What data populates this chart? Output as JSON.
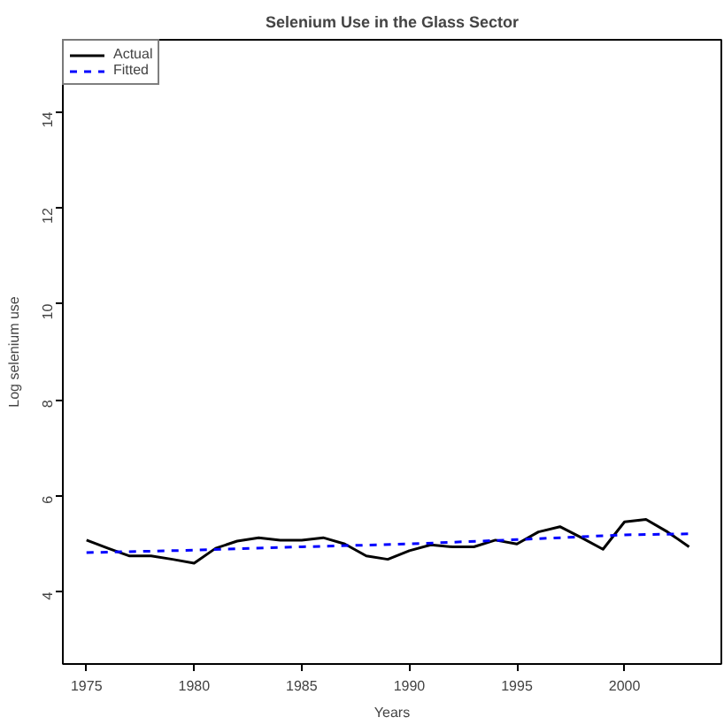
{
  "chart_data": {
    "type": "line",
    "title": "Selenium Use in the Glass Sector",
    "xlabel": "Years",
    "ylabel": "Log selenium use",
    "xlim": [
      1973.9,
      2004.5
    ],
    "xticks": [
      1975,
      1980,
      1985,
      1990,
      1995,
      2000
    ],
    "ylim": [
      2.5,
      15.5
    ],
    "yticks": [
      4,
      6,
      8,
      10,
      12,
      14
    ],
    "grid": false,
    "legend": "top left",
    "series": [
      {
        "name": "Actual",
        "color": "#000000",
        "line_style": "solid",
        "x": [
          1975,
          1976,
          1977,
          1978,
          1979,
          1980,
          1981,
          1982,
          1983,
          1984,
          1985,
          1986,
          1987,
          1988,
          1989,
          1990,
          1991,
          1992,
          1993,
          1994,
          1995,
          1996,
          1997,
          1998,
          1999,
          2000,
          2001,
          2002,
          2003
        ],
        "values": [
          5.08,
          4.91,
          4.75,
          4.75,
          4.68,
          4.6,
          4.91,
          5.06,
          5.13,
          5.08,
          5.08,
          5.13,
          5.0,
          4.75,
          4.68,
          4.86,
          4.98,
          4.94,
          4.94,
          5.08,
          5.0,
          5.25,
          5.36,
          5.13,
          4.89,
          5.46,
          5.51,
          5.25,
          4.94
        ]
      },
      {
        "name": "Fitted",
        "color": "#0000ff",
        "line_style": "dashed",
        "x": [
          1975,
          1980,
          1985,
          1990,
          1995,
          2000,
          2003
        ],
        "values": [
          4.82,
          4.87,
          4.94,
          5.0,
          5.09,
          5.19,
          5.21
        ]
      }
    ]
  }
}
